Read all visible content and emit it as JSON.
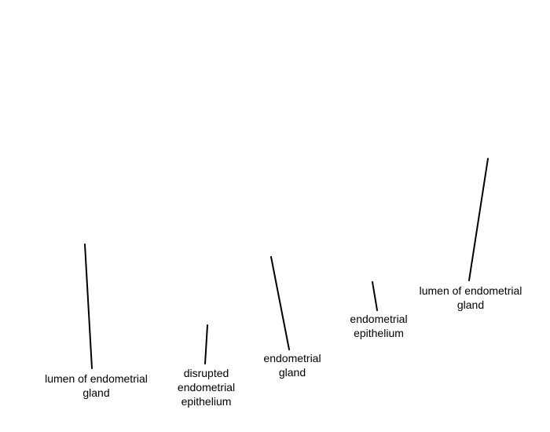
{
  "labels": [
    {
      "id": "lumen-left",
      "text": "lumen of endometrial\ngland"
    },
    {
      "id": "disrupted-epithelium",
      "text": "disrupted\nendometrial\nepithelium"
    },
    {
      "id": "endometrial-gland",
      "text": "endometrial\ngland"
    },
    {
      "id": "endometrial-epithelium",
      "text": "endometrial\nepithelium"
    },
    {
      "id": "lumen-right",
      "text": "lumen of endometrial\ngland"
    }
  ],
  "colors": {
    "background": "#ffffff",
    "line": "#000000",
    "text": "#000000"
  }
}
